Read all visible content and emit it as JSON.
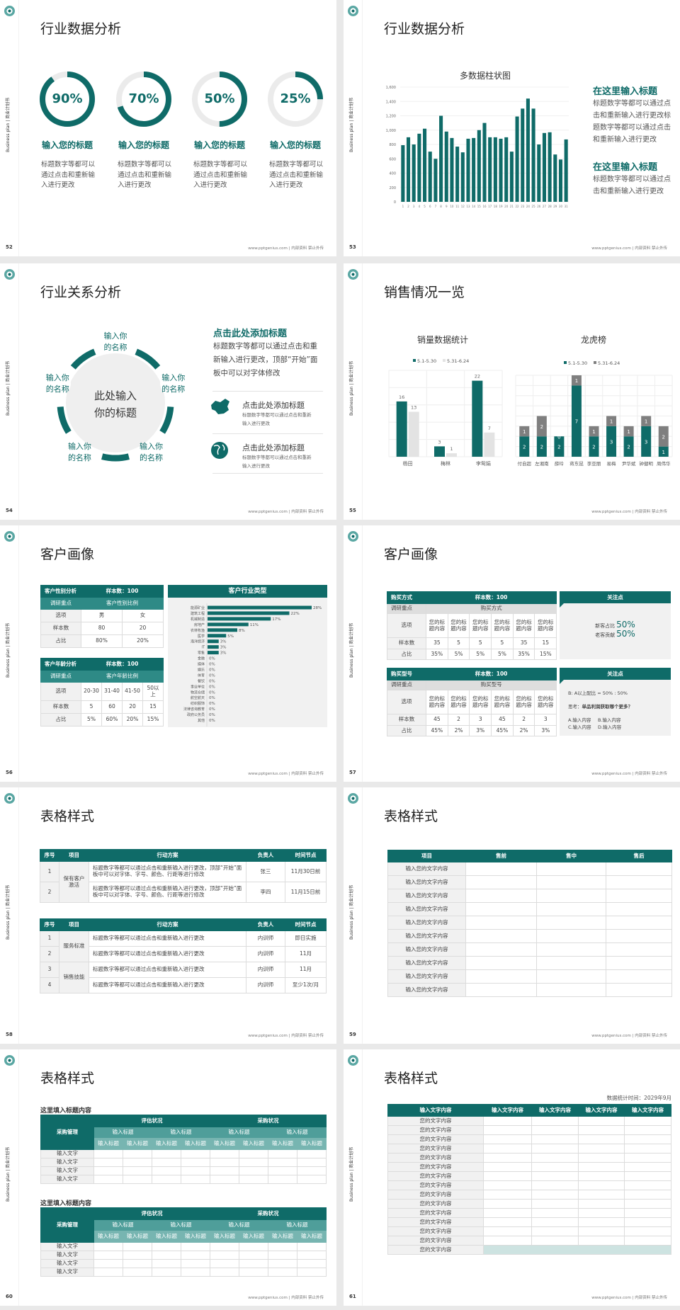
{
  "common": {
    "side_label": "Business plan | 商业计划书",
    "footer": "www.pptgenius.com | 内部资料 禁止外传",
    "logo_icon": "circle-emblem-icon",
    "colors": {
      "teal": "#0f6b68",
      "teal_light": "#2e8a86",
      "gray_track": "#ebebeb",
      "gray_bar": "#7f7f7f",
      "light_bar": "#e3e3e3",
      "background": "#e9e9e9"
    }
  },
  "s52": {
    "page": "52",
    "title": "行业数据分析",
    "rings": [
      {
        "percent": 90,
        "label": "90%",
        "title": "输入您的标题",
        "desc": "标题数字等都可以通过点击和重新输入进行更改"
      },
      {
        "percent": 70,
        "label": "70%",
        "title": "输入您的标题",
        "desc": "标题数字等都可以通过点击和重新输入进行更改"
      },
      {
        "percent": 50,
        "label": "50%",
        "title": "输入您的标题",
        "desc": "标题数字等都可以通过点击和重新输入进行更改"
      },
      {
        "percent": 25,
        "label": "25%",
        "title": "输入您的标题",
        "desc": "标题数字等都可以通过点击和重新输入进行更改"
      }
    ]
  },
  "s53": {
    "page": "53",
    "title": "行业数据分析",
    "side": [
      {
        "title": "在这里输入标题",
        "desc": "标题数字等都可以通过点击和重新输入进行更改标题数字等都可以通过点击和重新输入进行更改"
      },
      {
        "title": "在这里输入标题",
        "desc": "标题数字等都可以通过点击和重新输入进行更改"
      }
    ]
  },
  "s54": {
    "page": "54",
    "title": "行业关系分析",
    "center": "此处输入你的标题",
    "nodes": [
      "输入你的名称",
      "输入你的名称",
      "输入你的名称",
      "输入你的名称",
      "输入你的名称"
    ],
    "right_title": "点击此处添加标题",
    "right_desc": "标题数字等都可以通过点击和重新输入进行更改，顶部“开始”面板中可以对字体修改",
    "items": [
      {
        "icon": "china-map-icon",
        "title": "点击此处添加标题",
        "desc": "标题数字等都可以通过点击和重新输入进行更改"
      },
      {
        "icon": "globe-icon",
        "title": "点击此处添加标题",
        "desc": "标题数字等都可以通过点击和重新输入进行更改"
      }
    ]
  },
  "s55": {
    "page": "55",
    "title": "销售情况一览"
  },
  "s56": {
    "page": "56",
    "title": "客户画像",
    "gender_table": {
      "title": "客户性别分析",
      "sample": "样本数：100",
      "focus_label": "调研重点",
      "focus": "客户性别比例",
      "rows": [
        [
          "选项",
          "男",
          "女"
        ],
        [
          "样本数",
          "80",
          "20"
        ],
        [
          "占比",
          "80%",
          "20%"
        ]
      ]
    },
    "age_table": {
      "title": "客户年龄分析",
      "sample": "样本数：100",
      "focus_label": "调研重点",
      "focus": "客户年龄比例",
      "rows": [
        [
          "选项",
          "20-30",
          "31-40",
          "41-50",
          "50以上"
        ],
        [
          "样本数",
          "5",
          "60",
          "20",
          "15"
        ],
        [
          "占比",
          "5%",
          "60%",
          "20%",
          "15%"
        ]
      ]
    },
    "industry_title": "客户行业类型"
  },
  "s57": {
    "page": "57",
    "title": "客户画像",
    "method_table": {
      "title": "购买方式",
      "sample": "样本数：100",
      "focus_label": "调研重点",
      "focus": "购买方式",
      "rows": [
        [
          "选项",
          "您的标题内容",
          "您的标题内容",
          "您的标题内容",
          "您的标题内容",
          "您的标题内容",
          "您的标题内容"
        ],
        [
          "样本数",
          "35",
          "5",
          "5",
          "5",
          "35",
          "15"
        ],
        [
          "占比",
          "35%",
          "5%",
          "5%",
          "5%",
          "35%",
          "15%"
        ]
      ]
    },
    "model_table": {
      "title": "购买型号",
      "sample": "样本数：100",
      "focus_label": "调研重点",
      "focus": "购买型号",
      "rows": [
        [
          "选项",
          "您的标题内容",
          "您的标题内容",
          "您的标题内容",
          "您的标题内容",
          "您的标题内容",
          "您的标题内容"
        ],
        [
          "样本数",
          "45",
          "2",
          "3",
          "45",
          "2",
          "3"
        ],
        [
          "占比",
          "45%",
          "2%",
          "3%",
          "45%",
          "2%",
          "3%"
        ]
      ]
    },
    "panel1": {
      "title": "关注点",
      "lines": [
        {
          "label": "新客占比",
          "value": "50%"
        },
        {
          "label": "老客贡献",
          "value": "50%"
        }
      ]
    },
    "panel2": {
      "title": "关注点",
      "ratio": "B: A以上配比 = 50% : 50%",
      "question_label": "思考：",
      "question": "单品利润获取哪个更多？",
      "options": [
        "A.输入内容",
        "B.输入内容",
        "C.输入内容",
        "D.输入内容"
      ]
    }
  },
  "s58": {
    "page": "58",
    "title": "表格样式",
    "headers": [
      "序号",
      "项目",
      "行动方案",
      "负责人",
      "时间节点"
    ],
    "table1": [
      {
        "project": "保有客户激活",
        "rows": [
          {
            "no": "1",
            "plan": "标题数字等都可以通过点击和重新输入进行更改，顶部“开始”面板中可以对字体、字号、颜色、行距等进行修改",
            "owner": "张三",
            "time": "11月30日前"
          },
          {
            "no": "2",
            "plan": "标题数字等都可以通过点击和重新输入进行更改，顶部“开始”面板中可以对字体、字号、颜色、行距等进行修改",
            "owner": "李四",
            "time": "11月15日前"
          }
        ]
      }
    ],
    "table2": [
      {
        "project": "服务标准",
        "rows": [
          {
            "no": "1",
            "plan": "标题数字等都可以通过点击和重新输入进行更改",
            "owner": "内训师",
            "time": "即日实施"
          },
          {
            "no": "2",
            "plan": "标题数字等都可以通过点击和重新输入进行更改",
            "owner": "内训师",
            "time": "11月"
          }
        ]
      },
      {
        "project": "销售技能",
        "rows": [
          {
            "no": "3",
            "plan": "标题数字等都可以通过点击和重新输入进行更改",
            "owner": "内训师",
            "time": "11月"
          },
          {
            "no": "4",
            "plan": "标题数字等都可以通过点击和重新输入进行更改",
            "owner": "内训师",
            "time": "至少1次/月"
          }
        ]
      }
    ]
  },
  "s59": {
    "page": "59",
    "title": "表格样式",
    "headers": [
      "项目",
      "售前",
      "售中",
      "售后"
    ],
    "rows": [
      "输入您的文字内容",
      "输入您的文字内容",
      "输入您的文字内容",
      "输入您的文字内容",
      "输入您的文字内容",
      "输入您的文字内容",
      "输入您的文字内容",
      "输入您的文字内容",
      "输入您的文字内容",
      "输入您的文字内容"
    ]
  },
  "s60": {
    "page": "60",
    "title": "表格样式",
    "tables": [
      {
        "subtitle": "这里填入标题内容",
        "corner": "采购管理",
        "groups": [
          "评估状况",
          "采购状况"
        ],
        "mid": [
          "输入标题",
          "输入标题",
          "输入标题",
          "输入标题"
        ],
        "sub": [
          "输入标题",
          "输入标题",
          "输入标题",
          "输入标题",
          "输入标题",
          "输入标题",
          "输入标题",
          "输入标题"
        ],
        "rows": [
          "输入文字",
          "输入文字",
          "输入文字",
          "输入文字"
        ]
      },
      {
        "subtitle": "这里填入标题内容",
        "corner": "采购管理",
        "groups": [
          "评估状况",
          "采购状况"
        ],
        "mid": [
          "输入标题",
          "输入标题",
          "输入标题",
          "输入标题"
        ],
        "sub": [
          "输入标题",
          "输入标题",
          "输入标题",
          "输入标题",
          "输入标题",
          "输入标题",
          "输入标题",
          "输入标题"
        ],
        "rows": [
          "输入文字",
          "输入文字",
          "输入文字",
          "输入文字"
        ]
      }
    ]
  },
  "s61": {
    "page": "61",
    "title": "表格样式",
    "date": "数据统计时间：2029年9月",
    "headers": [
      "输入文字内容",
      "输入文字内容",
      "输入文字内容",
      "输入文字内容",
      "输入文字内容"
    ],
    "rows": [
      "您的文字内容",
      "您的文字内容",
      "您的文字内容",
      "您的文字内容",
      "您的文字内容",
      "您的文字内容",
      "您的文字内容",
      "您的文字内容",
      "您的文字内容",
      "您的文字内容",
      "您的文字内容",
      "您的文字内容",
      "您的文字内容",
      "您的文字内容",
      "您的文字内容"
    ]
  },
  "chart_data": [
    {
      "type": "bar",
      "title": "多数据柱状图",
      "categories": [
        "1",
        "2",
        "3",
        "4",
        "5",
        "6",
        "7",
        "8",
        "9",
        "10",
        "11",
        "12",
        "13",
        "14",
        "15",
        "16",
        "17",
        "18",
        "19",
        "20",
        "21",
        "22",
        "23",
        "24",
        "25",
        "26",
        "27",
        "28",
        "29",
        "30",
        "31"
      ],
      "values": [
        790,
        900,
        800,
        950,
        1020,
        700,
        600,
        1200,
        980,
        890,
        770,
        690,
        880,
        890,
        1000,
        1100,
        900,
        900,
        880,
        900,
        700,
        1190,
        1300,
        1440,
        1300,
        800,
        960,
        970,
        660,
        590,
        870
      ],
      "ylim": [
        0,
        1600
      ],
      "yticks": [
        "0",
        "200",
        "400",
        "600",
        "800",
        "1,000",
        "1,200",
        "1,400",
        "1,600"
      ],
      "grid": true,
      "color": "#0f6b68"
    },
    {
      "type": "bar",
      "title": "销量数据统计",
      "categories": [
        "杨田",
        "梅林",
        "李鸳娟"
      ],
      "series": [
        {
          "name": "5.1-5.30",
          "values": [
            16,
            3,
            22
          ],
          "color": "#0f6b68"
        },
        {
          "name": "5.31-6.24",
          "values": [
            13,
            1,
            7
          ],
          "color": "#e3e3e3"
        }
      ],
      "ylim": [
        0,
        25
      ],
      "legend": "top",
      "grid": true
    },
    {
      "type": "bar",
      "stacked": true,
      "title": "龙虎榜",
      "categories": [
        "付自超",
        "左湘南",
        "薛玲",
        "蒋东昆",
        "李亚丽",
        "易梅",
        "尹华斌",
        "钟健明",
        "周伟华"
      ],
      "series": [
        {
          "name": "5.1-5.30",
          "values": [
            2,
            2,
            2,
            7,
            2,
            3,
            2,
            3,
            1
          ],
          "color": "#0f6b68"
        },
        {
          "name": "5.31-6.24",
          "values": [
            1,
            2,
            0,
            1,
            1,
            1,
            1,
            1,
            2
          ],
          "color": "#7f7f7f"
        }
      ],
      "ylim": [
        0,
        8
      ],
      "legend": "top",
      "grid": true
    },
    {
      "type": "bar",
      "orientation": "horizontal",
      "title": "客户行业类型",
      "categories": [
        "能源矿业",
        "建筑工程",
        "机械制造",
        "房地产",
        "农林牧渔",
        "医学",
        "海洋经济",
        "IT",
        "零售",
        "金融",
        "媒体",
        "娱乐",
        "体育",
        "餐饮",
        "事业单位",
        "物流仓储",
        "航空航天",
        "纺织服饰",
        "法律咨询教育",
        "政府公务员",
        "其他"
      ],
      "values": [
        28,
        22,
        17,
        11,
        8,
        5,
        3,
        3,
        3,
        0,
        0,
        0,
        0,
        0,
        0,
        0,
        0,
        0,
        0,
        0,
        0
      ],
      "labels": [
        "28%",
        "22%",
        "17%",
        "11%",
        "8%",
        "5%",
        "3%",
        "3%",
        "3%",
        "0%",
        "0%",
        "0%",
        "0%",
        "0%",
        "0%",
        "0%",
        "0%",
        "0%",
        "0%",
        "0%",
        "0%"
      ],
      "color": "#0f6b68"
    }
  ]
}
